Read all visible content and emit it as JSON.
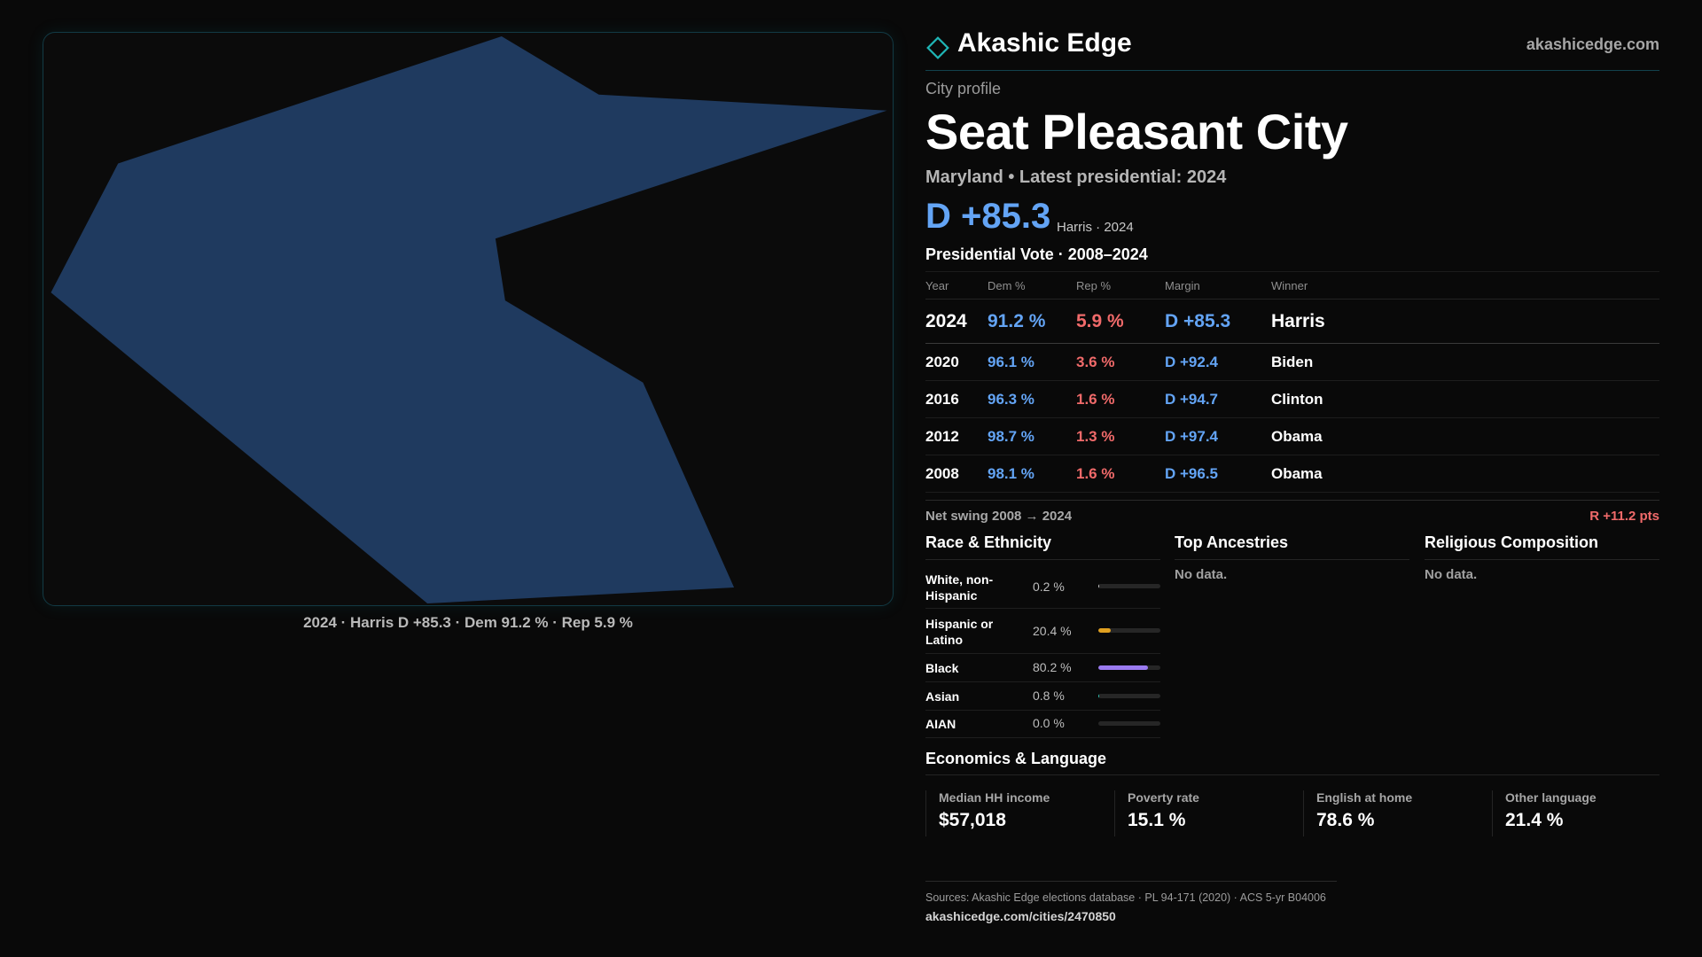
{
  "map": {
    "caption": "2024 · Harris D +85.3 · Dem 91.2 % · Rep 5.9 %",
    "fill_color": "#1f3a5f"
  },
  "header": {
    "brand": "Akashic Edge",
    "site": "akashicedge.com",
    "logo_icon": "diamond-outline-icon",
    "accent_color": "#1fb5b5"
  },
  "profile": {
    "kicker": "City profile",
    "title": "Seat Pleasant City",
    "subtitle": "Maryland • Latest presidential: 2024",
    "margin": "D +85.3",
    "margin_note": "Harris · 2024"
  },
  "vote": {
    "heading": "Presidential Vote · 2008–2024",
    "columns": [
      "Year",
      "Dem %",
      "Rep %",
      "Margin",
      "Winner"
    ],
    "rows": [
      {
        "year": "2024",
        "dem": "91.2 %",
        "rep": "5.9 %",
        "margin": "D +85.3",
        "winner": "Harris"
      },
      {
        "year": "2020",
        "dem": "96.1 %",
        "rep": "3.6 %",
        "margin": "D +92.4",
        "winner": "Biden"
      },
      {
        "year": "2016",
        "dem": "96.3 %",
        "rep": "1.6 %",
        "margin": "D +94.7",
        "winner": "Clinton"
      },
      {
        "year": "2012",
        "dem": "98.7 %",
        "rep": "1.3 %",
        "margin": "D +97.4",
        "winner": "Obama"
      },
      {
        "year": "2008",
        "dem": "98.1 %",
        "rep": "1.6 %",
        "margin": "D +96.5",
        "winner": "Obama"
      }
    ],
    "swing_label": "Net swing 2008 → 2024",
    "swing_value": "R +11.2 pts",
    "dem_color": "#63a4f5",
    "rep_color": "#f06a6a"
  },
  "race": {
    "heading": "Race & Ethnicity",
    "items": [
      {
        "label": "White, non-Hispanic",
        "value": "0.2 %",
        "share": 0.2,
        "color": "#c9c9c9"
      },
      {
        "label": "Hispanic or Latino",
        "value": "20.4 %",
        "share": 20.4,
        "color": "#e0a020"
      },
      {
        "label": "Black",
        "value": "80.2 %",
        "share": 80.2,
        "color": "#9a7af0"
      },
      {
        "label": "Asian",
        "value": "0.8 %",
        "share": 0.8,
        "color": "#2fc0b0"
      },
      {
        "label": "AIAN",
        "value": "0.0 %",
        "share": 0.0,
        "color": "#c9c9c9"
      }
    ]
  },
  "ancestries": {
    "heading": "Top Ancestries",
    "empty": "No data."
  },
  "religion": {
    "heading": "Religious Composition",
    "empty": "No data."
  },
  "economics": {
    "heading": "Economics & Language",
    "stats": [
      {
        "label": "Median HH income",
        "value": "$57,018"
      },
      {
        "label": "Poverty rate",
        "value": "15.1 %"
      },
      {
        "label": "English at home",
        "value": "78.6 %"
      },
      {
        "label": "Other language",
        "value": "21.4 %"
      }
    ]
  },
  "footer": {
    "sources": "Sources: Akashic Edge elections database · PL 94-171 (2020) · ACS 5-yr B04006",
    "url": "akashicedge.com/cities/2470850"
  }
}
